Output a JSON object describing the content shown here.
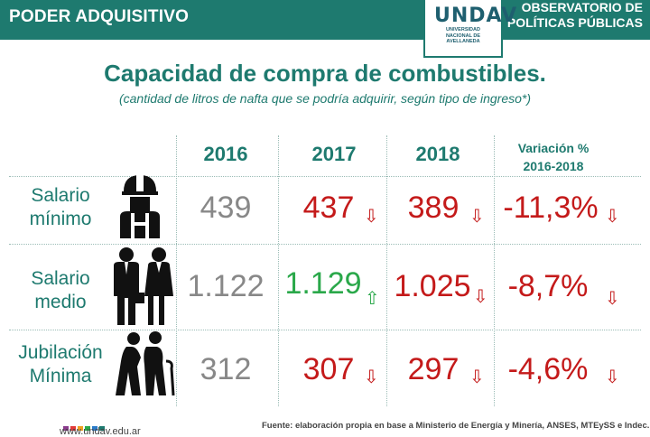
{
  "header": {
    "section": "PODER ADQUISITIVO",
    "org_line1": "OBSERVATORIO DE",
    "org_line2": "POLÍTICAS PÚBLICAS",
    "logo_mark": "UNDAV",
    "logo_sub1": "UNIVERSIDAD",
    "logo_sub2": "NACIONAL DE",
    "logo_sub3": "AVELLANEDA"
  },
  "title": "Capacidad de compra de combustibles.",
  "subtitle": "(cantidad de litros de nafta que se podría adquirir, según tipo de ingreso*)",
  "columns": {
    "y2016": "2016",
    "y2017": "2017",
    "y2018": "2018",
    "variation_line1": "Variación %",
    "variation_line2": "2016-2018"
  },
  "rows": [
    {
      "label_line1": "Salario",
      "label_line2": "mínimo",
      "icon": "worker-icon",
      "v2016": "439",
      "v2017": "437",
      "v2017_trend": "down",
      "v2018": "389",
      "v2018_trend": "down",
      "variation": "-11,3%",
      "variation_trend": "down"
    },
    {
      "label_line1": "Salario",
      "label_line2": "medio",
      "icon": "office-workers-icon",
      "v2016": "1.122",
      "v2017": "1.129",
      "v2017_trend": "up",
      "v2018": "1.025",
      "v2018_trend": "down",
      "variation": "-8,7%",
      "variation_trend": "down"
    },
    {
      "label_line1": "Jubilación",
      "label_line2": "Mínima",
      "icon": "elderly-couple-icon",
      "v2016": "312",
      "v2017": "307",
      "v2017_trend": "down",
      "v2018": "297",
      "v2018_trend": "down",
      "variation": "-4,6%",
      "variation_trend": "down"
    }
  ],
  "arrows": {
    "down": "⇩",
    "up": "⇧"
  },
  "colors": {
    "brand": "#1e7a6f",
    "down": "#c41a1a",
    "up": "#2aa84a",
    "neutral": "#888888"
  },
  "footer": {
    "url": "www.undav.edu.ar",
    "source": "Fuente: elaboración propia en base a Ministerio de Energía y Minería, ANSES, MTEySS e Indec."
  }
}
